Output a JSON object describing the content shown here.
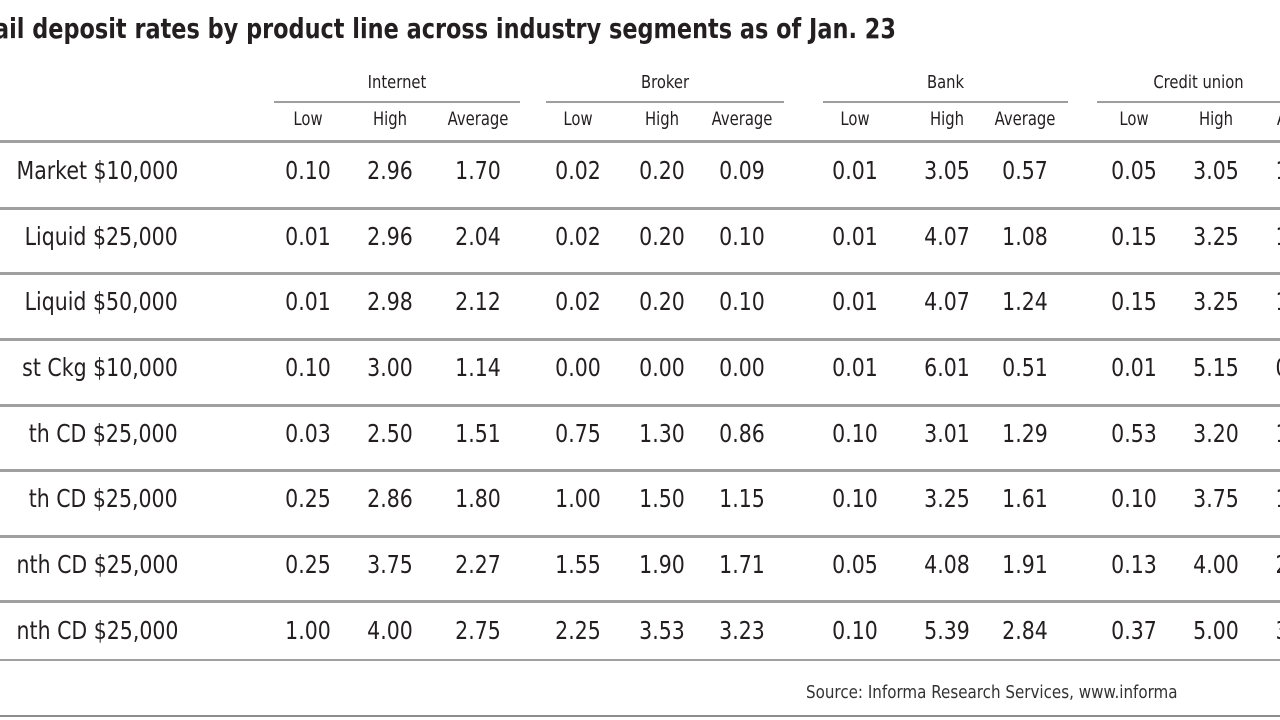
{
  "title": "ail deposit rates by product line across industry segments as of Jan. 23",
  "source": "Source: Informa Research Services, www.informa",
  "chart_data": {
    "type": "table",
    "groups": [
      "Internet",
      "Broker",
      "Bank",
      "Credit union"
    ],
    "subheaders": [
      "Low",
      "High",
      "Average",
      "Low",
      "High",
      "Average",
      "Low",
      "High",
      "Average",
      "Low",
      "High",
      "A"
    ],
    "rows": [
      {
        "label": "Market $10,000",
        "values": [
          "0.10",
          "2.96",
          "1.70",
          "0.02",
          "0.20",
          "0.09",
          "0.01",
          "3.05",
          "0.57",
          "0.05",
          "3.05",
          "1"
        ]
      },
      {
        "label": "Liquid $25,000",
        "values": [
          "0.01",
          "2.96",
          "2.04",
          "0.02",
          "0.20",
          "0.10",
          "0.01",
          "4.07",
          "1.08",
          "0.15",
          "3.25",
          "1"
        ]
      },
      {
        "label": "Liquid $50,000",
        "values": [
          "0.01",
          "2.98",
          "2.12",
          "0.02",
          "0.20",
          "0.10",
          "0.01",
          "4.07",
          "1.24",
          "0.15",
          "3.25",
          "1"
        ]
      },
      {
        "label": "st Ckg $10,000",
        "values": [
          "0.10",
          "3.00",
          "1.14",
          "0.00",
          "0.00",
          "0.00",
          "0.01",
          "6.01",
          "0.51",
          "0.01",
          "5.15",
          "0"
        ]
      },
      {
        "label": "th CD $25,000",
        "values": [
          "0.03",
          "2.50",
          "1.51",
          "0.75",
          "1.30",
          "0.86",
          "0.10",
          "3.01",
          "1.29",
          "0.53",
          "3.20",
          "1"
        ]
      },
      {
        "label": "th CD $25,000",
        "values": [
          "0.25",
          "2.86",
          "1.80",
          "1.00",
          "1.50",
          "1.15",
          "0.10",
          "3.25",
          "1.61",
          "0.10",
          "3.75",
          "1"
        ]
      },
      {
        "label": "nth CD $25,000",
        "values": [
          "0.25",
          "3.75",
          "2.27",
          "1.55",
          "1.90",
          "1.71",
          "0.05",
          "4.08",
          "1.91",
          "0.13",
          "4.00",
          "2"
        ]
      },
      {
        "label": "nth CD $25,000",
        "values": [
          "1.00",
          "4.00",
          "2.75",
          "2.25",
          "3.53",
          "3.23",
          "0.10",
          "5.39",
          "2.84",
          "0.37",
          "5.00",
          "3"
        ]
      }
    ]
  }
}
